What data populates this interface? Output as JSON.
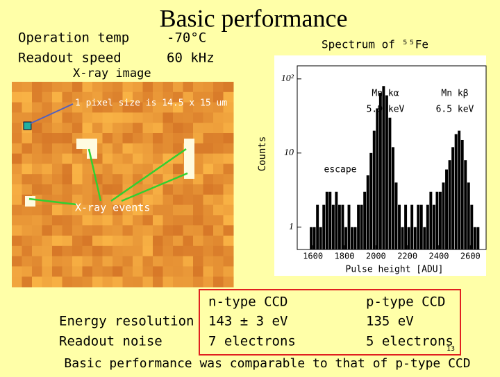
{
  "header": {
    "title": "Basic performance"
  },
  "conditions": {
    "rows": [
      [
        "Operation temp",
        "-70°C"
      ],
      [
        "Readout speed",
        "60 kHz"
      ]
    ]
  },
  "image": {
    "label": "X-ray image",
    "pixel_note": "1 pixel  size is 14.5 x 15 um",
    "events_note": "X-ray events"
  },
  "chart_data": {
    "type": "histogram",
    "title": "Spectrum of ⁵⁵Fe",
    "x_label": "Pulse height [ADU]",
    "y_label": "Counts",
    "bins": [
      1580,
      1600,
      1620,
      1640,
      1660,
      1680,
      1700,
      1720,
      1740,
      1760,
      1780,
      1800,
      1820,
      1840,
      1860,
      1880,
      1900,
      1920,
      1940,
      1960,
      1980,
      2000,
      2020,
      2040,
      2060,
      2080,
      2100,
      2120,
      2140,
      2160,
      2180,
      2200,
      2220,
      2240,
      2260,
      2280,
      2300,
      2320,
      2340,
      2360,
      2380,
      2400,
      2420,
      2440,
      2460,
      2480,
      2500,
      2520,
      2540,
      2560,
      2580,
      2600,
      2620,
      2640,
      2660
    ],
    "values": [
      1,
      1,
      2,
      1,
      2,
      3,
      3,
      2,
      3,
      2,
      2,
      1,
      2,
      1,
      1,
      2,
      2,
      3,
      5,
      10,
      20,
      40,
      65,
      80,
      60,
      30,
      12,
      4,
      2,
      1,
      2,
      1,
      2,
      1,
      2,
      2,
      1,
      2,
      3,
      2,
      3,
      3,
      4,
      6,
      8,
      12,
      18,
      20,
      15,
      8,
      4,
      2,
      1,
      1
    ],
    "color": "#000000",
    "log_y": true,
    "xlim": [
      1500,
      2700
    ],
    "xticks": [
      1600,
      1800,
      2000,
      2200,
      2400,
      2600
    ],
    "ylim": [
      0.5,
      150
    ],
    "yticks": [
      1,
      10,
      {
        "value": 100,
        "label": "10²"
      }
    ],
    "annotations": [
      {
        "lines": [
          "Mn kα",
          "5.9 keV"
        ]
      },
      {
        "lines": [
          "Mn kβ",
          "6.5 keV"
        ]
      },
      {
        "lines": [
          "escape"
        ]
      }
    ]
  },
  "table": {
    "header": [
      "n-type CCD",
      "p-type CCD"
    ],
    "rows": [
      [
        "Energy resolution",
        "143 ± 3 eV",
        "135 eV"
      ],
      [
        "Readout noise",
        "7 electrons",
        "5 electrons"
      ]
    ]
  },
  "page_number": "13",
  "conclusion": "Basic performance was comparable to that of p-type CCD"
}
